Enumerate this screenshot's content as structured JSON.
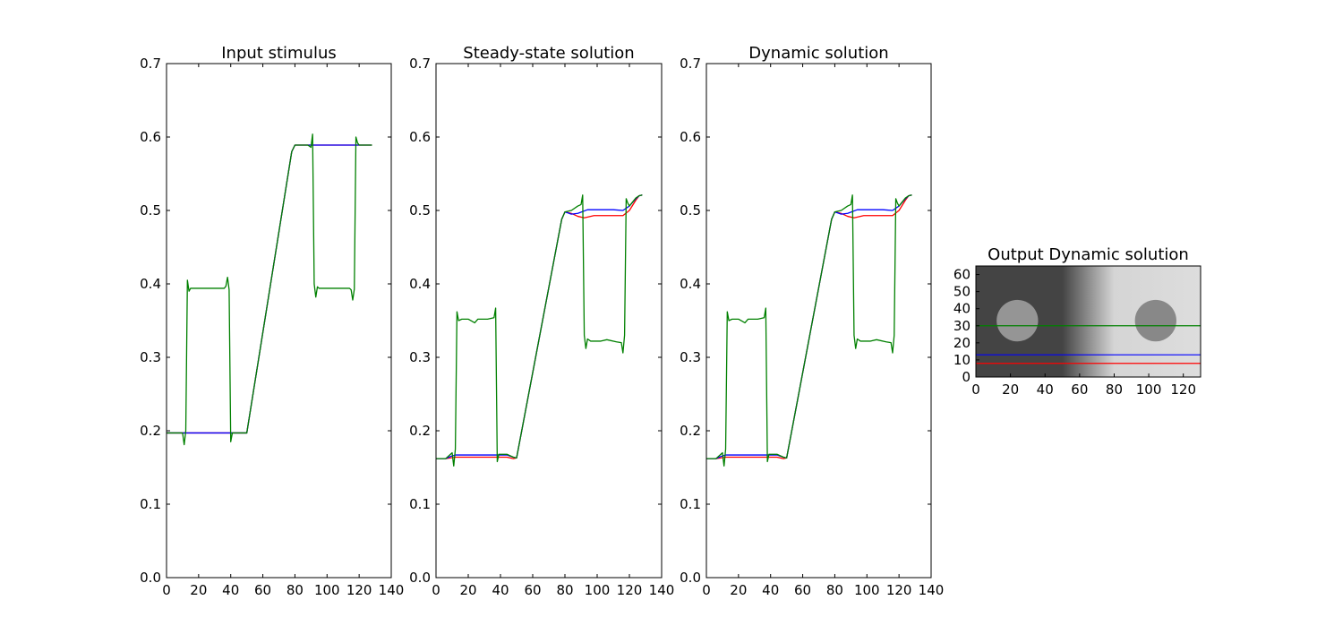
{
  "figure": {
    "background": "#ffffff",
    "series_colors": {
      "red": "#ff0000",
      "blue": "#0000ff",
      "green": "#008000"
    }
  },
  "chart_data": [
    {
      "type": "line",
      "title": "Input stimulus",
      "xlim": [
        0,
        140
      ],
      "ylim": [
        0.0,
        0.7
      ],
      "xticks": [
        "0",
        "20",
        "40",
        "60",
        "80",
        "100",
        "120",
        "140"
      ],
      "yticks": [
        "0.0",
        "0.1",
        "0.2",
        "0.3",
        "0.4",
        "0.5",
        "0.6",
        "0.7"
      ],
      "series": [
        {
          "color": "#ff0000",
          "points": [
            [
              0,
              0.197
            ],
            [
              48,
              0.197
            ],
            [
              50,
              0.197
            ],
            [
              78,
              0.58
            ],
            [
              80,
              0.589
            ],
            [
              128,
              0.589
            ]
          ]
        },
        {
          "color": "#0000ff",
          "points": [
            [
              0,
              0.197
            ],
            [
              48,
              0.197
            ],
            [
              50,
              0.197
            ],
            [
              78,
              0.58
            ],
            [
              80,
              0.589
            ],
            [
              128,
              0.589
            ]
          ]
        },
        {
          "color": "#008000",
          "points": [
            [
              0,
              0.197
            ],
            [
              10,
              0.197
            ],
            [
              11,
              0.181
            ],
            [
              12,
              0.2
            ],
            [
              13,
              0.405
            ],
            [
              14,
              0.39
            ],
            [
              15,
              0.394
            ],
            [
              36,
              0.394
            ],
            [
              37,
              0.397
            ],
            [
              38,
              0.409
            ],
            [
              39,
              0.392
            ],
            [
              40,
              0.185
            ],
            [
              41,
              0.197
            ],
            [
              48,
              0.197
            ],
            [
              50,
              0.197
            ],
            [
              78,
              0.58
            ],
            [
              80,
              0.589
            ],
            [
              88,
              0.589
            ],
            [
              90,
              0.586
            ],
            [
              91,
              0.604
            ],
            [
              92,
              0.4
            ],
            [
              93,
              0.382
            ],
            [
              94,
              0.396
            ],
            [
              95,
              0.394
            ],
            [
              114,
              0.394
            ],
            [
              115,
              0.392
            ],
            [
              116,
              0.378
            ],
            [
              117,
              0.393
            ],
            [
              118,
              0.6
            ],
            [
              119,
              0.592
            ],
            [
              120,
              0.589
            ],
            [
              128,
              0.589
            ]
          ]
        }
      ]
    },
    {
      "type": "line",
      "title": "Steady-state solution",
      "xlim": [
        0,
        140
      ],
      "ylim": [
        0.0,
        0.7
      ],
      "xticks": [
        "0",
        "20",
        "40",
        "60",
        "80",
        "100",
        "120",
        "140"
      ],
      "yticks": [
        "0.0",
        "0.1",
        "0.2",
        "0.3",
        "0.4",
        "0.5",
        "0.6",
        "0.7"
      ],
      "series": [
        {
          "color": "#ff0000",
          "points": [
            [
              0,
              0.162
            ],
            [
              6,
              0.162
            ],
            [
              9,
              0.163
            ],
            [
              12,
              0.164
            ],
            [
              44,
              0.164
            ],
            [
              48,
              0.162
            ],
            [
              50,
              0.163
            ],
            [
              78,
              0.488
            ],
            [
              80,
              0.498
            ],
            [
              84,
              0.496
            ],
            [
              88,
              0.492
            ],
            [
              92,
              0.49
            ],
            [
              98,
              0.493
            ],
            [
              116,
              0.493
            ],
            [
              120,
              0.5
            ],
            [
              124,
              0.514
            ],
            [
              126,
              0.52
            ],
            [
              128,
              0.521
            ]
          ]
        },
        {
          "color": "#0000ff",
          "points": [
            [
              0,
              0.162
            ],
            [
              6,
              0.162
            ],
            [
              9,
              0.165
            ],
            [
              12,
              0.167
            ],
            [
              44,
              0.167
            ],
            [
              48,
              0.164
            ],
            [
              50,
              0.163
            ],
            [
              78,
              0.488
            ],
            [
              80,
              0.498
            ],
            [
              84,
              0.495
            ],
            [
              88,
              0.496
            ],
            [
              94,
              0.501
            ],
            [
              110,
              0.501
            ],
            [
              116,
              0.5
            ],
            [
              120,
              0.506
            ],
            [
              124,
              0.516
            ],
            [
              126,
              0.52
            ],
            [
              128,
              0.521
            ]
          ]
        },
        {
          "color": "#008000",
          "points": [
            [
              0,
              0.162
            ],
            [
              6,
              0.162
            ],
            [
              9,
              0.168
            ],
            [
              10,
              0.17
            ],
            [
              11,
              0.152
            ],
            [
              12,
              0.175
            ],
            [
              13,
              0.362
            ],
            [
              14,
              0.35
            ],
            [
              16,
              0.352
            ],
            [
              20,
              0.352
            ],
            [
              24,
              0.347
            ],
            [
              26,
              0.352
            ],
            [
              32,
              0.352
            ],
            [
              36,
              0.354
            ],
            [
              37,
              0.367
            ],
            [
              38,
              0.158
            ],
            [
              39,
              0.168
            ],
            [
              44,
              0.168
            ],
            [
              48,
              0.164
            ],
            [
              50,
              0.163
            ],
            [
              78,
              0.488
            ],
            [
              80,
              0.498
            ],
            [
              84,
              0.5
            ],
            [
              88,
              0.506
            ],
            [
              90,
              0.508
            ],
            [
              91,
              0.521
            ],
            [
              92,
              0.33
            ],
            [
              93,
              0.312
            ],
            [
              94,
              0.325
            ],
            [
              96,
              0.322
            ],
            [
              102,
              0.322
            ],
            [
              106,
              0.324
            ],
            [
              112,
              0.321
            ],
            [
              115,
              0.32
            ],
            [
              116,
              0.306
            ],
            [
              117,
              0.33
            ],
            [
              118,
              0.516
            ],
            [
              119,
              0.51
            ],
            [
              120,
              0.506
            ],
            [
              124,
              0.517
            ],
            [
              126,
              0.52
            ],
            [
              128,
              0.521
            ]
          ]
        }
      ]
    },
    {
      "type": "line",
      "title": "Dynamic solution",
      "xlim": [
        0,
        140
      ],
      "ylim": [
        0.0,
        0.7
      ],
      "xticks": [
        "0",
        "20",
        "40",
        "60",
        "80",
        "100",
        "120",
        "140"
      ],
      "yticks": [
        "0.0",
        "0.1",
        "0.2",
        "0.3",
        "0.4",
        "0.5",
        "0.6",
        "0.7"
      ],
      "series": [
        {
          "color": "#ff0000",
          "points": [
            [
              0,
              0.162
            ],
            [
              6,
              0.162
            ],
            [
              9,
              0.163
            ],
            [
              12,
              0.164
            ],
            [
              44,
              0.164
            ],
            [
              48,
              0.162
            ],
            [
              50,
              0.163
            ],
            [
              78,
              0.488
            ],
            [
              80,
              0.498
            ],
            [
              84,
              0.496
            ],
            [
              88,
              0.492
            ],
            [
              92,
              0.49
            ],
            [
              98,
              0.493
            ],
            [
              116,
              0.493
            ],
            [
              120,
              0.5
            ],
            [
              124,
              0.514
            ],
            [
              126,
              0.52
            ],
            [
              128,
              0.521
            ]
          ]
        },
        {
          "color": "#0000ff",
          "points": [
            [
              0,
              0.162
            ],
            [
              6,
              0.162
            ],
            [
              9,
              0.165
            ],
            [
              12,
              0.167
            ],
            [
              44,
              0.167
            ],
            [
              48,
              0.164
            ],
            [
              50,
              0.163
            ],
            [
              78,
              0.488
            ],
            [
              80,
              0.498
            ],
            [
              84,
              0.495
            ],
            [
              88,
              0.496
            ],
            [
              94,
              0.501
            ],
            [
              110,
              0.501
            ],
            [
              116,
              0.5
            ],
            [
              120,
              0.506
            ],
            [
              124,
              0.516
            ],
            [
              126,
              0.52
            ],
            [
              128,
              0.521
            ]
          ]
        },
        {
          "color": "#008000",
          "points": [
            [
              0,
              0.162
            ],
            [
              6,
              0.162
            ],
            [
              9,
              0.168
            ],
            [
              10,
              0.17
            ],
            [
              11,
              0.152
            ],
            [
              12,
              0.175
            ],
            [
              13,
              0.362
            ],
            [
              14,
              0.35
            ],
            [
              16,
              0.352
            ],
            [
              20,
              0.352
            ],
            [
              24,
              0.347
            ],
            [
              26,
              0.352
            ],
            [
              32,
              0.352
            ],
            [
              36,
              0.354
            ],
            [
              37,
              0.367
            ],
            [
              38,
              0.158
            ],
            [
              39,
              0.168
            ],
            [
              44,
              0.168
            ],
            [
              48,
              0.164
            ],
            [
              50,
              0.163
            ],
            [
              78,
              0.488
            ],
            [
              80,
              0.498
            ],
            [
              84,
              0.5
            ],
            [
              88,
              0.506
            ],
            [
              90,
              0.508
            ],
            [
              91,
              0.521
            ],
            [
              92,
              0.33
            ],
            [
              93,
              0.312
            ],
            [
              94,
              0.325
            ],
            [
              96,
              0.322
            ],
            [
              102,
              0.322
            ],
            [
              106,
              0.324
            ],
            [
              112,
              0.321
            ],
            [
              115,
              0.32
            ],
            [
              116,
              0.306
            ],
            [
              117,
              0.33
            ],
            [
              118,
              0.516
            ],
            [
              119,
              0.51
            ],
            [
              120,
              0.506
            ],
            [
              124,
              0.517
            ],
            [
              126,
              0.52
            ],
            [
              128,
              0.521
            ]
          ]
        }
      ]
    },
    {
      "type": "heatmap",
      "title": "Output Dynamic solution",
      "colormap": "gray",
      "xlim": [
        0,
        130
      ],
      "ylim": [
        0,
        65
      ],
      "xticks": [
        "0",
        "20",
        "40",
        "60",
        "80",
        "100",
        "120"
      ],
      "yticks": [
        "0",
        "10",
        "20",
        "30",
        "40",
        "50",
        "60"
      ],
      "background_profile": [
        [
          0,
          0.16
        ],
        [
          50,
          0.16
        ],
        [
          80,
          0.5
        ],
        [
          130,
          0.52
        ]
      ],
      "disks": [
        {
          "cx": 24,
          "cy": 33,
          "r": 12,
          "value": 0.35
        },
        {
          "cx": 104,
          "cy": 33,
          "r": 12,
          "value": 0.32
        }
      ],
      "hlines": [
        {
          "y": 30,
          "color": "#008000"
        },
        {
          "y": 13,
          "color": "#0000ff"
        },
        {
          "y": 8,
          "color": "#ff0000"
        }
      ]
    }
  ]
}
